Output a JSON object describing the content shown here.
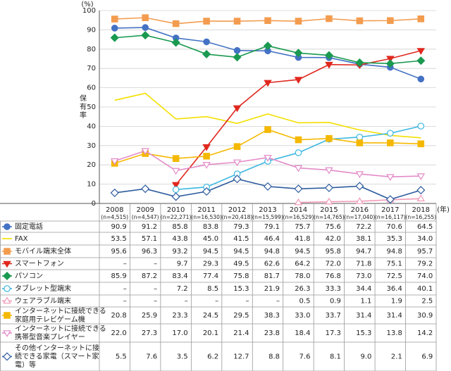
{
  "chart_data": {
    "type": "line",
    "ylabel": "保有率",
    "yunit": "(%)",
    "xunit": "(年)",
    "ylim": [
      0,
      100
    ],
    "yticks": [
      0,
      10,
      20,
      30,
      40,
      50,
      60,
      70,
      80,
      90,
      100
    ],
    "grid": true,
    "categories": [
      "2008",
      "2009",
      "2010",
      "2011",
      "2012",
      "2013",
      "2014",
      "2015",
      "2016",
      "2017",
      "2018"
    ],
    "sample_sizes": [
      "(n=4,515)",
      "(n=4,547)",
      "(n=22,271)",
      "(n=16,530)",
      "(n=20,418)",
      "(n=15,599)",
      "(n=16,529)",
      "(n=14,765)",
      "(n=17,040)",
      "(n=16,117)",
      "(n=16,255)"
    ],
    "series": [
      {
        "name": [
          "固定電話"
        ],
        "color": "#4472c4",
        "marker": "circle",
        "filled": true,
        "values": [
          90.9,
          91.2,
          85.8,
          83.8,
          79.3,
          79.1,
          75.7,
          75.6,
          72.2,
          70.6,
          64.5
        ],
        "value_labels": [
          "90.9",
          "91.2",
          "85.8",
          "83.8",
          "79.3",
          "79.1",
          "75.7",
          "75.6",
          "72.2",
          "70.6",
          "64.5"
        ]
      },
      {
        "name": [
          "FAX"
        ],
        "color": "#f2e000",
        "marker": "none",
        "filled": true,
        "values": [
          53.5,
          57.1,
          43.8,
          45.0,
          41.5,
          46.4,
          41.8,
          42.0,
          38.1,
          35.3,
          34.0
        ],
        "value_labels": [
          "53.5",
          "57.1",
          "43.8",
          "45.0",
          "41.5",
          "46.4",
          "41.8",
          "42.0",
          "38.1",
          "35.3",
          "34.0"
        ]
      },
      {
        "name": [
          "モバイル端末全体"
        ],
        "color": "#f39c4f",
        "marker": "square",
        "filled": true,
        "values": [
          95.6,
          96.3,
          93.2,
          94.5,
          94.5,
          94.8,
          94.5,
          95.8,
          94.7,
          94.8,
          95.7
        ],
        "value_labels": [
          "95.6",
          "96.3",
          "93.2",
          "94.5",
          "94.5",
          "94.8",
          "94.5",
          "95.8",
          "94.7",
          "94.8",
          "95.7"
        ]
      },
      {
        "name": [
          "スマートフォン"
        ],
        "color": "#e0281e",
        "marker": "triangle-down",
        "filled": true,
        "values": [
          null,
          null,
          9.7,
          29.3,
          49.5,
          62.6,
          64.2,
          72.0,
          71.8,
          75.1,
          79.2
        ],
        "value_labels": [
          "–",
          "–",
          "9.7",
          "29.3",
          "49.5",
          "62.6",
          "64.2",
          "72.0",
          "71.8",
          "75.1",
          "79.2"
        ]
      },
      {
        "name": [
          "パソコン"
        ],
        "color": "#1a9a50",
        "marker": "diamond",
        "filled": true,
        "values": [
          85.9,
          87.2,
          83.4,
          77.4,
          75.8,
          81.7,
          78.0,
          76.8,
          73.0,
          72.5,
          74.0
        ],
        "value_labels": [
          "85.9",
          "87.2",
          "83.4",
          "77.4",
          "75.8",
          "81.7",
          "78.0",
          "76.8",
          "73.0",
          "72.5",
          "74.0"
        ]
      },
      {
        "name": [
          "タブレット型端末"
        ],
        "color": "#3bb7e0",
        "marker": "circle",
        "filled": false,
        "values": [
          null,
          null,
          7.2,
          8.5,
          15.3,
          21.9,
          26.3,
          33.3,
          34.4,
          36.4,
          40.1
        ],
        "value_labels": [
          "–",
          "–",
          "7.2",
          "8.5",
          "15.3",
          "21.9",
          "26.3",
          "33.3",
          "34.4",
          "36.4",
          "40.1"
        ]
      },
      {
        "name": [
          "ウェアラブル端末"
        ],
        "color": "#f29ab8",
        "marker": "triangle-up",
        "filled": false,
        "values": [
          null,
          null,
          null,
          null,
          null,
          null,
          0.5,
          0.9,
          1.1,
          1.9,
          2.5
        ],
        "value_labels": [
          "–",
          "–",
          "–",
          "–",
          "–",
          "–",
          "0.5",
          "0.9",
          "1.1",
          "1.9",
          "2.5"
        ]
      },
      {
        "name": [
          "インターネットに接続できる",
          "家庭用テレビゲーム機"
        ],
        "color": "#f5b800",
        "marker": "square",
        "filled": true,
        "values": [
          20.8,
          25.9,
          23.3,
          24.5,
          29.5,
          38.3,
          33.0,
          33.7,
          31.4,
          31.4,
          30.9
        ],
        "value_labels": [
          "20.8",
          "25.9",
          "23.3",
          "24.5",
          "29.5",
          "38.3",
          "33.0",
          "33.7",
          "31.4",
          "31.4",
          "30.9"
        ]
      },
      {
        "name": [
          "インターネットに接続できる",
          "携帯型音楽プレイヤー"
        ],
        "color": "#e38bc8",
        "marker": "triangle-down",
        "filled": false,
        "values": [
          22.0,
          27.3,
          17.0,
          20.1,
          21.4,
          23.8,
          18.4,
          17.3,
          15.3,
          13.8,
          14.2
        ],
        "value_labels": [
          "22.0",
          "27.3",
          "17.0",
          "20.1",
          "21.4",
          "23.8",
          "18.4",
          "17.3",
          "15.3",
          "13.8",
          "14.2"
        ]
      },
      {
        "name": [
          "その他インターネットに接",
          "続できる家電（スマート家",
          "電）等"
        ],
        "color": "#2e5c9e",
        "marker": "diamond",
        "filled": false,
        "values": [
          5.5,
          7.6,
          3.5,
          6.2,
          12.7,
          8.8,
          7.6,
          8.1,
          9.0,
          2.1,
          6.9
        ],
        "value_labels": [
          "5.5",
          "7.6",
          "3.5",
          "6.2",
          "12.7",
          "8.8",
          "7.6",
          "8.1",
          "9.0",
          "2.1",
          "6.9"
        ]
      }
    ]
  }
}
